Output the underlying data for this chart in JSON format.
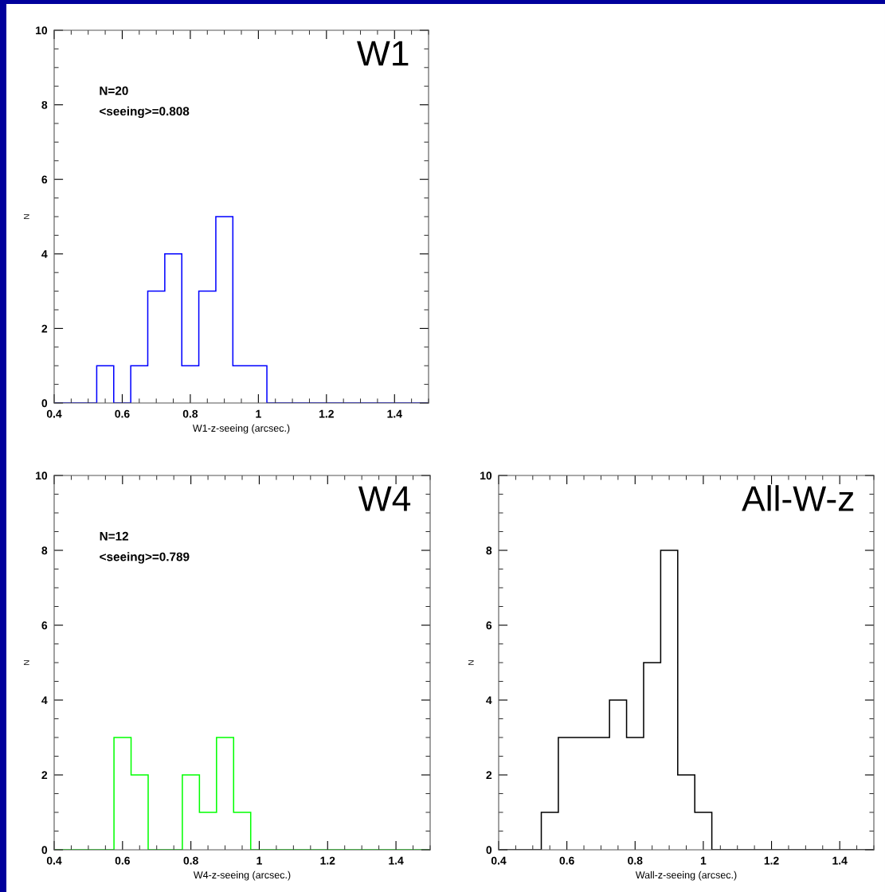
{
  "chart_data": [
    {
      "type": "histogram",
      "title": "W1",
      "xlabel": "W1-z-seeing (arcsec.)",
      "ylabel": "N",
      "annotations": [
        "N=20",
        "<seeing>=0.808"
      ],
      "color": "#0000ff",
      "bins": [
        0.4,
        0.425,
        0.475,
        0.525,
        0.575,
        0.625,
        0.675,
        0.725,
        0.775,
        0.825,
        0.875,
        0.925,
        0.975,
        1.025,
        1.075,
        1.125,
        1.175,
        1.225,
        1.275,
        1.325,
        1.375,
        1.425,
        1.475,
        1.5
      ],
      "values": [
        0,
        0,
        0,
        1,
        0,
        1,
        3,
        4,
        1,
        3,
        5,
        1,
        1,
        0,
        0,
        0,
        0,
        0,
        0,
        0,
        0,
        0,
        0
      ],
      "xlim": [
        0.4,
        1.5
      ],
      "xticks": [
        0.4,
        0.6,
        0.8,
        1,
        1.2,
        1.4
      ],
      "ylim": [
        0,
        10
      ],
      "yticks": [
        0,
        2,
        4,
        6,
        8,
        10
      ],
      "grid": false,
      "legend": false
    },
    {
      "type": "histogram",
      "title": "W4",
      "xlabel": "W4-z-seeing (arcsec.)",
      "ylabel": "N",
      "annotations": [
        "N=12",
        "<seeing>=0.789"
      ],
      "color": "#00ff00",
      "bins": [
        0.4,
        0.425,
        0.475,
        0.525,
        0.575,
        0.625,
        0.675,
        0.725,
        0.775,
        0.825,
        0.875,
        0.925,
        0.975,
        1.025,
        1.075,
        1.125,
        1.175,
        1.225,
        1.275,
        1.325,
        1.375,
        1.425,
        1.475,
        1.5
      ],
      "values": [
        0,
        0,
        0,
        0,
        3,
        2,
        0,
        0,
        2,
        1,
        3,
        1,
        0,
        0,
        0,
        0,
        0,
        0,
        0,
        0,
        0,
        0,
        0
      ],
      "xlim": [
        0.4,
        1.5
      ],
      "xticks": [
        0.4,
        0.6,
        0.8,
        1,
        1.2,
        1.4
      ],
      "ylim": [
        0,
        10
      ],
      "yticks": [
        0,
        2,
        4,
        6,
        8,
        10
      ],
      "grid": false,
      "legend": false
    },
    {
      "type": "histogram",
      "title": "All-W-z",
      "xlabel": "Wall-z-seeing (arcsec.)",
      "ylabel": "N",
      "color": "#000000",
      "bins": [
        0.4,
        0.425,
        0.475,
        0.525,
        0.575,
        0.625,
        0.675,
        0.725,
        0.775,
        0.825,
        0.875,
        0.925,
        0.975,
        1.025,
        1.075,
        1.125,
        1.175,
        1.225,
        1.275,
        1.325,
        1.375,
        1.425,
        1.475,
        1.5
      ],
      "values": [
        0,
        0,
        0,
        1,
        3,
        3,
        3,
        4,
        3,
        5,
        8,
        2,
        1,
        0,
        0,
        0,
        0,
        0,
        0,
        0,
        0,
        0,
        0
      ],
      "xlim": [
        0.4,
        1.5
      ],
      "xticks": [
        0.4,
        0.6,
        0.8,
        1,
        1.2,
        1.4
      ],
      "ylim": [
        0,
        10
      ],
      "yticks": [
        0,
        2,
        4,
        6,
        8,
        10
      ],
      "grid": false,
      "legend": false
    }
  ]
}
